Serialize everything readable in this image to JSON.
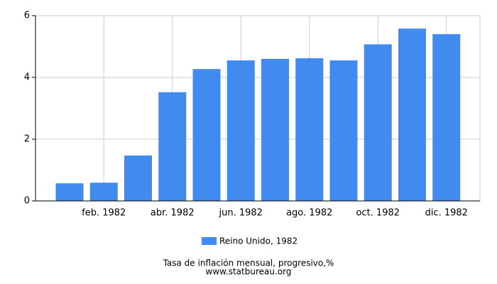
{
  "chart_data": {
    "type": "bar",
    "title": "Tasa de inflación mensual, progresivo,%",
    "source": "www.statbureau.org",
    "categories": [
      null,
      "feb. 1982",
      null,
      "abr. 1982",
      null,
      "jun. 1982",
      null,
      "ago. 1982",
      null,
      "oct. 1982",
      null,
      "dic. 1982"
    ],
    "series": [
      {
        "name": "Reino Unido, 1982",
        "color": "#418bf0",
        "values": [
          0.57,
          0.59,
          1.47,
          3.52,
          4.27,
          4.55,
          4.6,
          4.62,
          4.55,
          5.07,
          5.58,
          5.4
        ]
      }
    ],
    "ylim": [
      0,
      6
    ],
    "yticks": [
      0,
      2,
      4,
      6
    ],
    "grid": true
  }
}
